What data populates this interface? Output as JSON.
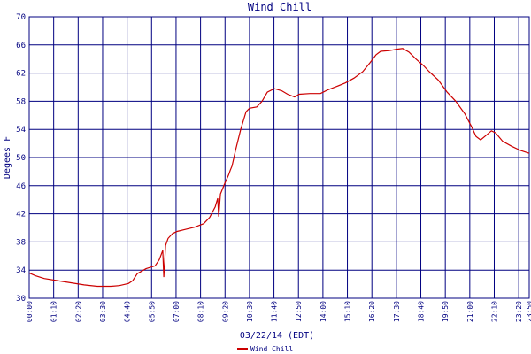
{
  "chart_data": {
    "type": "line",
    "title": "Wind Chill",
    "x_label": "03/22/14 (EDT)",
    "y_label": "Degees F",
    "x": [
      0,
      18,
      43,
      81,
      119,
      157,
      195,
      233,
      258,
      284,
      296,
      309,
      334,
      360,
      372,
      382,
      385,
      390,
      397,
      410,
      423,
      448,
      473,
      499,
      516,
      532,
      539,
      542,
      547,
      559,
      570,
      575,
      580,
      590,
      605,
      620,
      630,
      651,
      666,
      681,
      701,
      722,
      739,
      759,
      772,
      803,
      833,
      853,
      879,
      904,
      929,
      954,
      975,
      992,
      1005,
      1030,
      1051,
      1068,
      1086,
      1106,
      1127,
      1144,
      1170,
      1195,
      1220,
      1246,
      1266,
      1278,
      1291,
      1303,
      1322,
      1334,
      1354,
      1380,
      1405,
      1430
    ],
    "series": [
      {
        "name": "Wind Chill",
        "color": "#cc0000",
        "values": [
          33.6,
          33.2,
          32.8,
          32.5,
          32.2,
          31.9,
          31.7,
          31.7,
          31.8,
          32.1,
          32.5,
          33.5,
          34.2,
          34.6,
          35.5,
          36.8,
          33.0,
          37.5,
          38.5,
          39.2,
          39.5,
          39.8,
          40.1,
          40.6,
          41.5,
          43.0,
          44.2,
          41.6,
          44.8,
          46.3,
          47.5,
          48.2,
          48.8,
          51.0,
          54.0,
          56.5,
          57.0,
          57.2,
          58.0,
          59.3,
          59.8,
          59.5,
          59.0,
          58.6,
          59.0,
          59.1,
          59.1,
          59.6,
          60.1,
          60.6,
          61.3,
          62.2,
          63.5,
          64.6,
          65.1,
          65.2,
          65.4,
          65.5,
          65.0,
          64.0,
          63.1,
          62.2,
          61.0,
          59.3,
          58.0,
          56.2,
          54.3,
          53.0,
          52.5,
          53.0,
          53.8,
          53.5,
          52.3,
          51.6,
          51.0,
          50.6
        ]
      }
    ],
    "xlim": [
      0,
      1430
    ],
    "xticks": [
      {
        "value": 0,
        "label": "00:00"
      },
      {
        "value": 70,
        "label": "01:10"
      },
      {
        "value": 140,
        "label": "02:20"
      },
      {
        "value": 210,
        "label": "03:30"
      },
      {
        "value": 280,
        "label": "04:40"
      },
      {
        "value": 350,
        "label": "05:50"
      },
      {
        "value": 420,
        "label": "07:00"
      },
      {
        "value": 490,
        "label": "08:10"
      },
      {
        "value": 560,
        "label": "09:20"
      },
      {
        "value": 630,
        "label": "10:30"
      },
      {
        "value": 700,
        "label": "11:40"
      },
      {
        "value": 770,
        "label": "12:50"
      },
      {
        "value": 840,
        "label": "14:00"
      },
      {
        "value": 910,
        "label": "15:10"
      },
      {
        "value": 980,
        "label": "16:20"
      },
      {
        "value": 1050,
        "label": "17:30"
      },
      {
        "value": 1120,
        "label": "18:40"
      },
      {
        "value": 1190,
        "label": "19:50"
      },
      {
        "value": 1260,
        "label": "21:00"
      },
      {
        "value": 1330,
        "label": "22:10"
      },
      {
        "value": 1400,
        "label": "23:20"
      },
      {
        "value": 1430,
        "label": "23:50"
      }
    ],
    "ylim": [
      30,
      70
    ],
    "yticks": [
      30,
      34,
      38,
      42,
      46,
      50,
      54,
      58,
      62,
      66,
      70
    ],
    "grid": true,
    "legend": "bottom"
  }
}
